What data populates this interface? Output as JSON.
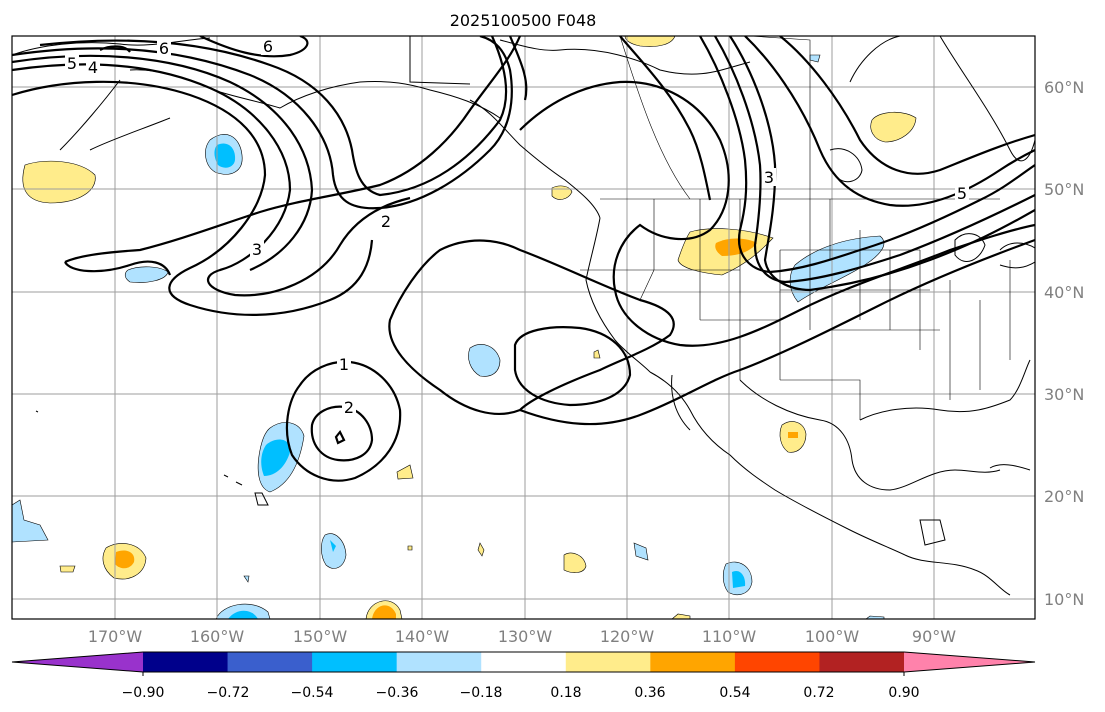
{
  "title": "2025100500 F048",
  "lat_labels": [
    "60°N",
    "50°N",
    "40°N",
    "30°N",
    "20°N",
    "10°N"
  ],
  "lon_labels": [
    "170°W",
    "160°W",
    "150°W",
    "140°W",
    "130°W",
    "120°W",
    "110°W",
    "100°W",
    "90°W"
  ],
  "contour_labels": [
    "6",
    "6",
    "5",
    "4",
    "5",
    "3",
    "3",
    "2",
    "1",
    "2"
  ],
  "colorbar": {
    "tick_labels": [
      "−0.90",
      "−0.72",
      "−0.54",
      "−0.36",
      "−0.18",
      "0.18",
      "0.36",
      "0.54",
      "0.72",
      "0.90"
    ],
    "colors": [
      "#9932cc",
      "#00008b",
      "#3a5fcd",
      "#00bfff",
      "#b0e2ff",
      "#ffffff",
      "#ffec8b",
      "#ffa500",
      "#ff4500",
      "#b22222",
      "#ff82ab"
    ]
  },
  "colors": {
    "light_blue": "#b0e2ff",
    "blue": "#00bfff",
    "light_yellow": "#ffec8b",
    "orange": "#ffa500"
  }
}
